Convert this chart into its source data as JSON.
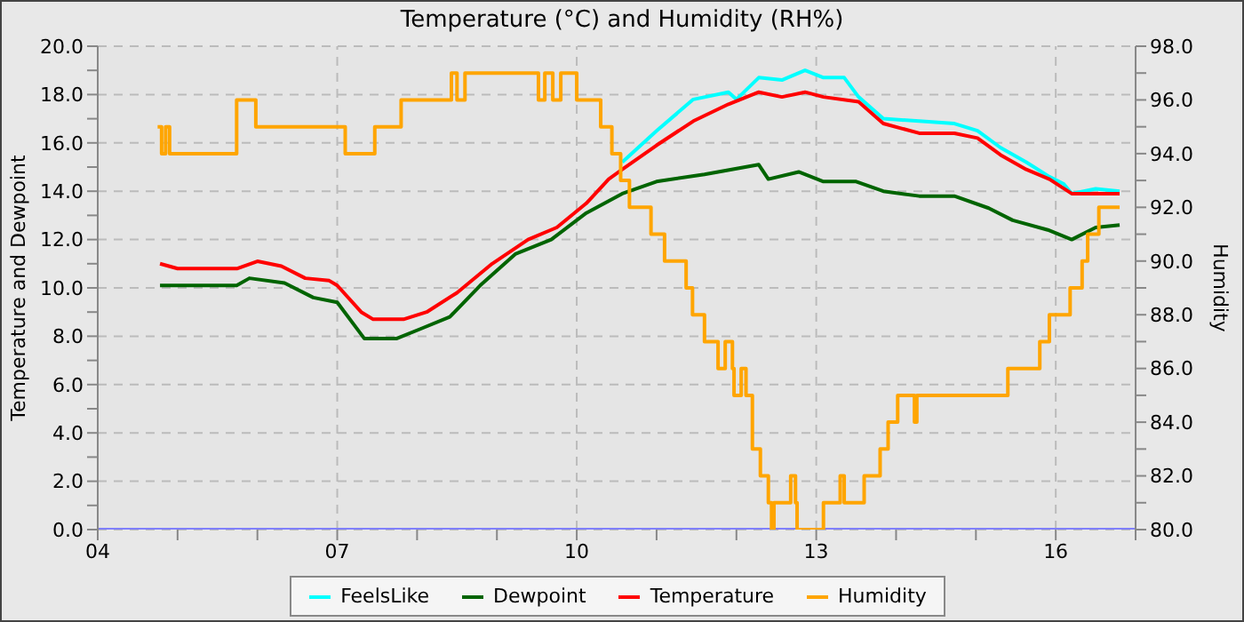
{
  "chart_data": {
    "type": "line",
    "title": "Temperature (°C) and Humidity (RH%)",
    "ylabel": "Temperature and Dewpoint",
    "y2label": "Humidity",
    "xlim": [
      4,
      17
    ],
    "xticks": [
      {
        "value": 4,
        "label": "04"
      },
      {
        "value": 5,
        "label": null
      },
      {
        "value": 6,
        "label": null
      },
      {
        "value": 7,
        "label": "07"
      },
      {
        "value": 8,
        "label": null
      },
      {
        "value": 9,
        "label": null
      },
      {
        "value": 10,
        "label": "10"
      },
      {
        "value": 11,
        "label": null
      },
      {
        "value": 12,
        "label": null
      },
      {
        "value": 13,
        "label": "13"
      },
      {
        "value": 14,
        "label": null
      },
      {
        "value": 15,
        "label": null
      },
      {
        "value": 16,
        "label": "16"
      },
      {
        "value": 17,
        "label": null
      }
    ],
    "ylim": [
      0,
      20
    ],
    "yticks": [
      {
        "value": 0,
        "label": "0.0"
      },
      {
        "value": 1,
        "label": null
      },
      {
        "value": 2,
        "label": "2.0"
      },
      {
        "value": 3,
        "label": null
      },
      {
        "value": 4,
        "label": "4.0"
      },
      {
        "value": 5,
        "label": null
      },
      {
        "value": 6,
        "label": "6.0"
      },
      {
        "value": 7,
        "label": null
      },
      {
        "value": 8,
        "label": "8.0"
      },
      {
        "value": 9,
        "label": null
      },
      {
        "value": 10,
        "label": "10.0"
      },
      {
        "value": 11,
        "label": null
      },
      {
        "value": 12,
        "label": "12.0"
      },
      {
        "value": 13,
        "label": null
      },
      {
        "value": 14,
        "label": "14.0"
      },
      {
        "value": 15,
        "label": null
      },
      {
        "value": 16,
        "label": "16.0"
      },
      {
        "value": 17,
        "label": null
      },
      {
        "value": 18,
        "label": "18.0"
      },
      {
        "value": 19,
        "label": null
      },
      {
        "value": 20,
        "label": "20.0"
      }
    ],
    "y2lim": [
      80,
      98
    ],
    "y2ticks": [
      {
        "value": 80,
        "label": "80.0"
      },
      {
        "value": 81,
        "label": null
      },
      {
        "value": 82,
        "label": "82.0"
      },
      {
        "value": 83,
        "label": null
      },
      {
        "value": 84,
        "label": "84.0"
      },
      {
        "value": 85,
        "label": null
      },
      {
        "value": 86,
        "label": "86.0"
      },
      {
        "value": 87,
        "label": null
      },
      {
        "value": 88,
        "label": "88.0"
      },
      {
        "value": 89,
        "label": null
      },
      {
        "value": 90,
        "label": "90.0"
      },
      {
        "value": 91,
        "label": null
      },
      {
        "value": 92,
        "label": "92.0"
      },
      {
        "value": 93,
        "label": null
      },
      {
        "value": 94,
        "label": "94.0"
      },
      {
        "value": 95,
        "label": null
      },
      {
        "value": 96,
        "label": "96.0"
      },
      {
        "value": 97,
        "label": null
      },
      {
        "value": 98,
        "label": "98.0"
      }
    ],
    "grid": true,
    "legend": "bottom",
    "line_style": "solid",
    "marker": "none",
    "series": [
      {
        "color": "#8080ff",
        "x": [
          4,
          17
        ],
        "values": [
          0,
          0
        ]
      },
      {
        "name": "FeelsLike",
        "color": "#00ffff",
        "x": [
          10.57,
          11.0,
          11.46,
          11.9,
          12.0,
          12.28,
          12.57,
          12.86,
          13.09,
          13.35,
          13.53,
          13.84,
          14.29,
          14.73,
          15.02,
          15.31,
          15.63,
          15.92,
          16.1,
          16.2,
          16.5,
          16.8
        ],
        "values": [
          15.2,
          16.5,
          17.8,
          18.1,
          17.8,
          18.7,
          18.6,
          19.0,
          18.7,
          18.7,
          17.9,
          17.0,
          16.9,
          16.8,
          16.5,
          15.8,
          15.2,
          14.6,
          14.3,
          13.9,
          14.1,
          14.0
        ]
      },
      {
        "name": "Dewpoint",
        "color": "#006400",
        "x": [
          4.78,
          5.74,
          5.9,
          6.34,
          6.7,
          7.0,
          7.34,
          7.74,
          8.04,
          8.41,
          8.79,
          9.23,
          9.68,
          10.12,
          10.57,
          11.0,
          11.6,
          12.28,
          12.4,
          12.78,
          13.09,
          13.5,
          13.84,
          14.29,
          14.73,
          15.16,
          15.46,
          15.9,
          16.2,
          16.5,
          16.8
        ],
        "values": [
          10.1,
          10.1,
          10.4,
          10.2,
          9.6,
          9.4,
          7.9,
          7.9,
          8.3,
          8.8,
          10.1,
          11.4,
          12.0,
          13.1,
          13.9,
          14.4,
          14.7,
          15.1,
          14.5,
          14.8,
          14.4,
          14.4,
          14.0,
          13.8,
          13.8,
          13.3,
          12.8,
          12.4,
          12.0,
          12.5,
          12.6
        ]
      },
      {
        "name": "Temperature",
        "color": "#ff0000",
        "x": [
          4.78,
          5.0,
          5.5,
          5.75,
          6.0,
          6.3,
          6.6,
          6.9,
          7.0,
          7.3,
          7.45,
          7.83,
          8.12,
          8.5,
          8.94,
          9.39,
          9.75,
          10.12,
          10.4,
          10.57,
          11.0,
          11.46,
          11.9,
          12.28,
          12.57,
          12.86,
          13.09,
          13.53,
          13.84,
          14.29,
          14.73,
          15.02,
          15.31,
          15.63,
          15.92,
          16.2,
          16.8
        ],
        "values": [
          11.0,
          10.8,
          10.8,
          10.8,
          11.1,
          10.9,
          10.4,
          10.3,
          10.1,
          9.0,
          8.7,
          8.7,
          9.0,
          9.8,
          11.0,
          12.0,
          12.5,
          13.5,
          14.5,
          14.9,
          15.9,
          16.9,
          17.6,
          18.1,
          17.9,
          18.1,
          17.9,
          17.7,
          16.8,
          16.4,
          16.4,
          16.2,
          15.5,
          14.9,
          14.5,
          13.9,
          13.9
        ]
      },
      {
        "name": "Humidity",
        "color": "#ffa500",
        "type": "step",
        "axis": "y2",
        "x": [
          4.75,
          4.8,
          4.85,
          4.9,
          5.74,
          5.98,
          7.1,
          7.47,
          7.8,
          8.43,
          8.5,
          8.6,
          8.79,
          9.52,
          9.6,
          9.7,
          9.8,
          10.0,
          10.3,
          10.44,
          10.55,
          10.66,
          10.93,
          11.1,
          11.37,
          11.45,
          11.6,
          11.77,
          11.86,
          11.95,
          11.97,
          12.06,
          12.12,
          12.2,
          12.3,
          12.4,
          12.44,
          12.47,
          12.68,
          12.74,
          12.76,
          13.09,
          13.3,
          13.35,
          13.6,
          13.8,
          13.9,
          14.02,
          14.23,
          14.26,
          14.28,
          15.4,
          15.8,
          15.92,
          16.18,
          16.33,
          16.4,
          16.54,
          16.8
        ],
        "values": [
          95,
          94,
          95,
          94,
          96,
          95,
          94,
          95,
          96,
          97,
          96,
          97,
          97,
          96,
          97,
          96,
          97,
          96,
          95,
          94,
          93,
          92,
          91,
          90,
          89,
          88,
          87,
          86,
          87,
          86,
          85,
          86,
          85,
          83,
          82,
          81,
          80,
          81,
          82,
          81,
          80,
          81,
          82,
          81,
          82,
          83,
          84,
          85,
          84,
          85,
          85,
          86,
          87,
          88,
          89,
          90,
          91,
          92,
          92
        ]
      }
    ]
  }
}
